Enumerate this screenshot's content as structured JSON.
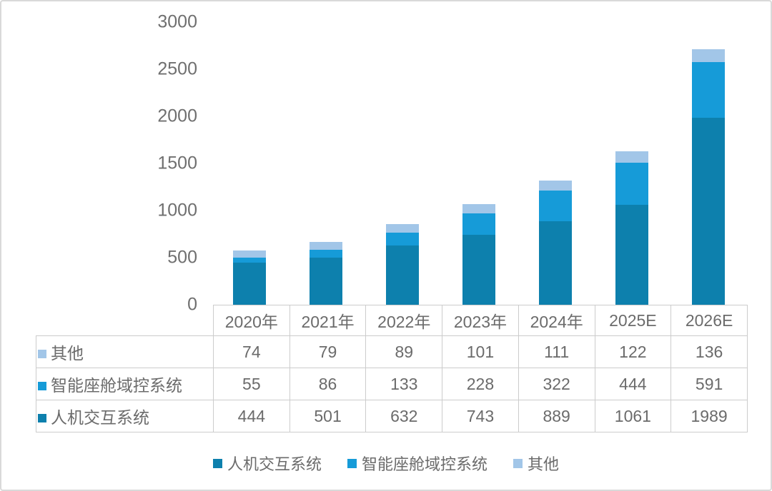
{
  "chart_data": {
    "type": "bar",
    "stacked": true,
    "title": "",
    "xlabel": "",
    "ylabel": "",
    "categories": [
      "2020年",
      "2021年",
      "2022年",
      "2023年",
      "2024年",
      "2025E",
      "2026E"
    ],
    "series": [
      {
        "name": "人机交互系统",
        "color": "#0d80ad",
        "values": [
          444,
          501,
          632,
          743,
          889,
          1061,
          1989
        ]
      },
      {
        "name": "智能座舱域控系统",
        "color": "#169bd8",
        "values": [
          55,
          86,
          133,
          228,
          322,
          444,
          591
        ]
      },
      {
        "name": "其他",
        "color": "#a2c6e8",
        "values": [
          74,
          79,
          89,
          101,
          111,
          122,
          136
        ]
      }
    ],
    "ylim": [
      0,
      3000
    ],
    "y_ticks": [
      0,
      500,
      1000,
      1500,
      2000,
      2500,
      3000
    ],
    "grid": false,
    "legend_position": "bottom",
    "data_table_shown": true,
    "table_rows_top_to_bottom": [
      "其他",
      "智能座舱域控系统",
      "人机交互系统"
    ]
  },
  "style_colors": {
    "frame_border": "#d9d9d9",
    "table_border": "#cccccc",
    "text_gray": "#6b6b6b",
    "background": "#ffffff"
  }
}
